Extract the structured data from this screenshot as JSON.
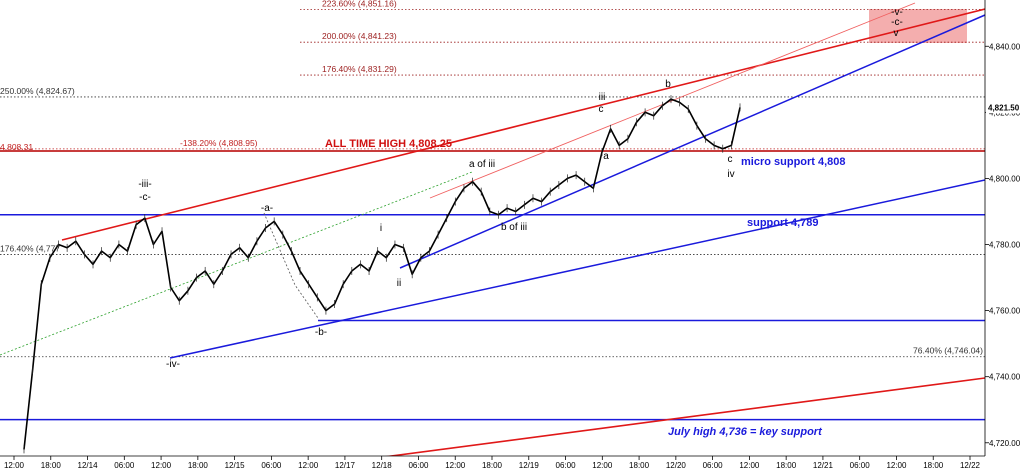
{
  "chart_data": {
    "type": "line",
    "title": "",
    "xlabel": "",
    "ylabel": "",
    "ylim": [
      4716,
      4854
    ],
    "y_ticks": [
      "4,720.00",
      "4,740.00",
      "4,760.00",
      "4,780.00",
      "4,800.00",
      "4,820.00",
      "4,840.00"
    ],
    "y_tick_values": [
      4720,
      4740,
      4760,
      4780,
      4800,
      4820,
      4840
    ],
    "x_ticks": [
      "12:00",
      "18:00",
      "12/14",
      "06:00",
      "12:00",
      "18:00",
      "12/15",
      "06:00",
      "12:00",
      "12/17",
      "12/18",
      "06:00",
      "12:00",
      "18:00",
      "12/19",
      "06:00",
      "12:00",
      "18:00",
      "12/20",
      "06:00",
      "12:00",
      "18:00",
      "12/21",
      "06:00",
      "12:00",
      "18:00",
      "12/22"
    ],
    "last_price": {
      "label": "4,821.50",
      "value": 4821.5,
      "color": "#e00000"
    },
    "price_series": {
      "name": "",
      "color": "#000000",
      "values": [
        4718,
        4742,
        4768,
        4776,
        4780,
        4779,
        4781,
        4777,
        4774,
        4778,
        4776,
        4780,
        4778,
        4786,
        4788,
        4780,
        4784,
        4767,
        4763,
        4766,
        4770,
        4772,
        4768,
        4772,
        4777,
        4779,
        4776,
        4781,
        4785,
        4787,
        4783,
        4778,
        4772,
        4768,
        4764,
        4760,
        4762,
        4768,
        4772,
        4774,
        4772,
        4778,
        4776,
        4780,
        4779,
        4771,
        4776,
        4778,
        4783,
        4788,
        4793,
        4797,
        4799,
        4796,
        4790,
        4789,
        4791,
        4790,
        4792,
        4794,
        4793,
        4796,
        4798,
        4800,
        4801,
        4799,
        4797,
        4808,
        4815,
        4810,
        4812,
        4817,
        4820,
        4819,
        4822,
        4824,
        4823,
        4821,
        4816,
        4812,
        4810,
        4809,
        4810,
        4821.5
      ]
    },
    "horizontal_levels": [
      {
        "label": "223.60% (4,851.16)",
        "value": 4851.16,
        "color": "#9b1c1c",
        "style": "dotted"
      },
      {
        "label": "200.00% (4,841.23)",
        "value": 4841.23,
        "color": "#9b1c1c",
        "style": "dotted"
      },
      {
        "label": "176.40% (4,831.29)",
        "value": 4831.29,
        "color": "#9b1c1c",
        "style": "dotted"
      },
      {
        "label": "250.00% (4,824.67)",
        "value": 4824.67,
        "color": "#333333",
        "style": "dotted"
      },
      {
        "label": "-138.20% (4,808.95)",
        "value": 4808.95,
        "color": "#c02020",
        "style": "dotted"
      },
      {
        "label": "4,808.31",
        "value": 4808.31,
        "color": "#c02020",
        "style": "solid"
      },
      {
        "label": "176.40% (4,777",
        "value": 4777.0,
        "color": "#333333",
        "style": "dotted"
      },
      {
        "label": "76.40% (4,746.04)",
        "value": 4746.04,
        "color": "#333333",
        "style": "dotted"
      }
    ],
    "support_lines": [
      {
        "value": 4789,
        "color": "#1a1adc"
      },
      {
        "value": 4757,
        "color": "#1a1adc"
      },
      {
        "value": 4727,
        "color": "#1a1adc"
      }
    ],
    "annotations": {
      "all_time_high": "ALL TIME HIGH 4,808.25",
      "micro_support": "micro support 4,808",
      "support": "support 4,789",
      "july_high": "July high 4,736 = key support"
    },
    "wave_labels": [
      "-iii-",
      "-c-",
      "-a-",
      "-iv-",
      "-b-",
      "i",
      "ii",
      "a of iii",
      "b of iii",
      "iii",
      "c",
      "a",
      "b",
      "c",
      "iv",
      "-v-",
      "-c-",
      "v"
    ]
  }
}
